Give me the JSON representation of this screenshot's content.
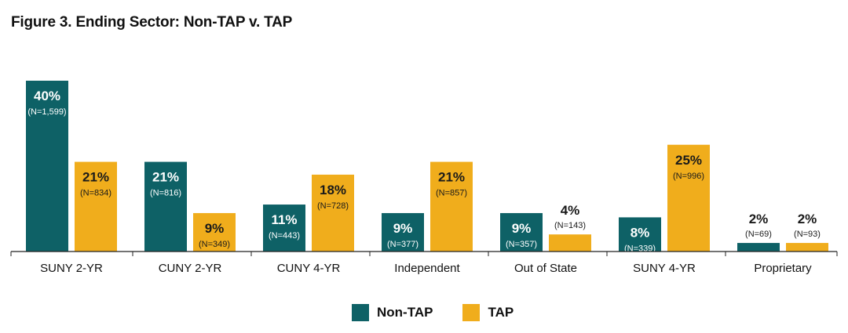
{
  "title": "Figure 3. Ending Sector: Non-TAP v. TAP",
  "colors": {
    "non_tap": "#0e6166",
    "tap": "#f0ad1c",
    "axis": "#222222"
  },
  "chart_data": {
    "type": "bar",
    "title": "Figure 3. Ending Sector: Non-TAP v. TAP",
    "categories": [
      "SUNY 2-YR",
      "CUNY 2-YR",
      "CUNY 4-YR",
      "Independent",
      "Out of State",
      "SUNY 4-YR",
      "Proprietary"
    ],
    "ylim": [
      0,
      40
    ],
    "grid": false,
    "legend": "bottom-center",
    "series": [
      {
        "name": "Non-TAP",
        "values": [
          40,
          21,
          11,
          9,
          9,
          8,
          2
        ],
        "labels": [
          "40%",
          "21%",
          "11%",
          "9%",
          "9%",
          "8%",
          "2%"
        ],
        "n_labels": [
          "(N=1,599)",
          "(N=816)",
          "(N=443)",
          "(N=377)",
          "(N=357)",
          "(N=339)",
          "(N=69)"
        ]
      },
      {
        "name": "TAP",
        "values": [
          21,
          9,
          18,
          21,
          4,
          25,
          2
        ],
        "labels": [
          "21%",
          "9%",
          "18%",
          "21%",
          "4%",
          "25%",
          "2%"
        ],
        "n_labels": [
          "(N=834)",
          "(N=349)",
          "(N=728)",
          "(N=857)",
          "(N=143)",
          "(N=996)",
          "(N=93)"
        ]
      }
    ]
  }
}
